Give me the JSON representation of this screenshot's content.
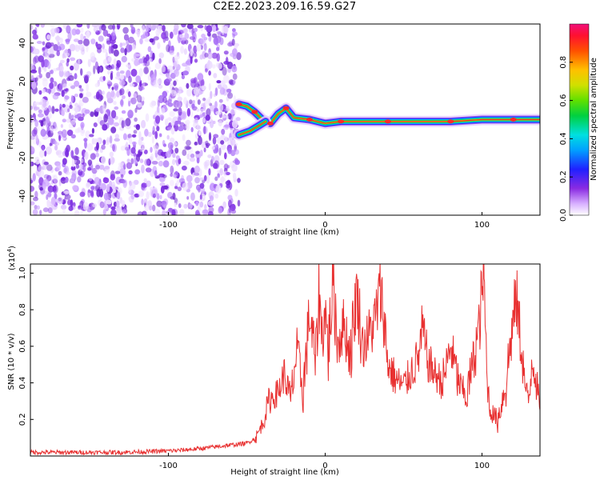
{
  "title": "C2E2.2023.209.16.59.G27",
  "colors": {
    "snr_line": "#e83030",
    "trace_core": "#e8332a",
    "noise": "#7a2be0"
  },
  "chart_data": [
    {
      "type": "heatmap",
      "title": "C2E2.2023.209.16.59.G27",
      "xlabel": "Height of straight line (km)",
      "ylabel": "Frequency (Hz)",
      "xlim": [
        -188,
        137
      ],
      "ylim": [
        -50,
        50
      ],
      "x_ticks": [
        -100,
        0,
        100
      ],
      "y_ticks": [
        -40,
        -20,
        0,
        20,
        40
      ],
      "noise_region_x": [
        -188,
        -55
      ],
      "trace": [
        {
          "x": -55,
          "f": 8
        },
        {
          "x": -50,
          "f": 7
        },
        {
          "x": -45,
          "f": 4
        },
        {
          "x": -40,
          "f": 0
        },
        {
          "x": -35,
          "f": -2
        },
        {
          "x": -30,
          "f": 3
        },
        {
          "x": -25,
          "f": 6
        },
        {
          "x": -20,
          "f": 1
        },
        {
          "x": -10,
          "f": 0
        },
        {
          "x": 0,
          "f": -2
        },
        {
          "x": 10,
          "f": -1
        },
        {
          "x": 20,
          "f": -1
        },
        {
          "x": 40,
          "f": -1
        },
        {
          "x": 60,
          "f": -1
        },
        {
          "x": 80,
          "f": -1
        },
        {
          "x": 100,
          "f": 0
        },
        {
          "x": 120,
          "f": 0
        },
        {
          "x": 137,
          "f": 0
        }
      ],
      "lower_branch": [
        {
          "x": -55,
          "f": -8
        },
        {
          "x": -48,
          "f": -6
        },
        {
          "x": -42,
          "f": -3
        },
        {
          "x": -38,
          "f": -1
        }
      ],
      "colorbar": {
        "label": "Normalized spectral amplitude",
        "ticks": [
          "0.0",
          "0.2",
          "0.4",
          "0.6",
          "0.8"
        ],
        "range": [
          0,
          1
        ]
      }
    },
    {
      "type": "line",
      "xlabel": "Height of straight line (km)",
      "ylabel": "SNR (10 * v/v)",
      "scale_label": "(x10",
      "scale_exponent": "4",
      "scale_close": ")",
      "xlim": [
        -188,
        137
      ],
      "ylim": [
        0,
        1.05
      ],
      "x_ticks": [
        -100,
        0,
        100
      ],
      "y_ticks": [
        "0.2",
        "0.4",
        "0.6",
        "0.8",
        "1.0"
      ],
      "series": [
        {
          "x": [
            -188,
            -170,
            -150,
            -130,
            -110,
            -95,
            -80,
            -70,
            -60,
            -50,
            -44,
            -40,
            -36,
            -30,
            -26,
            -22,
            -18,
            -14,
            -10,
            -6,
            -4,
            -2,
            0,
            2,
            5,
            8,
            12,
            16,
            20,
            24,
            28,
            32,
            35,
            37,
            40,
            45,
            50,
            55,
            60,
            62,
            65,
            70,
            75,
            80,
            85,
            90,
            95,
            99,
            101,
            103,
            105,
            110,
            115,
            120,
            122,
            125,
            128,
            130,
            132,
            135,
            137
          ],
          "y": [
            0.02,
            0.02,
            0.02,
            0.02,
            0.025,
            0.03,
            0.04,
            0.05,
            0.06,
            0.07,
            0.1,
            0.18,
            0.3,
            0.35,
            0.45,
            0.3,
            0.58,
            0.35,
            0.78,
            0.5,
            0.9,
            0.65,
            0.8,
            0.58,
            0.95,
            0.62,
            0.72,
            0.55,
            0.9,
            0.6,
            0.66,
            0.75,
            0.9,
            0.8,
            0.5,
            0.42,
            0.38,
            0.46,
            0.55,
            0.7,
            0.52,
            0.45,
            0.4,
            0.6,
            0.4,
            0.32,
            0.55,
            0.75,
            1.05,
            0.45,
            0.25,
            0.2,
            0.38,
            0.75,
            0.86,
            0.6,
            0.35,
            0.3,
            0.55,
            0.4,
            0.25
          ]
        }
      ]
    }
  ]
}
